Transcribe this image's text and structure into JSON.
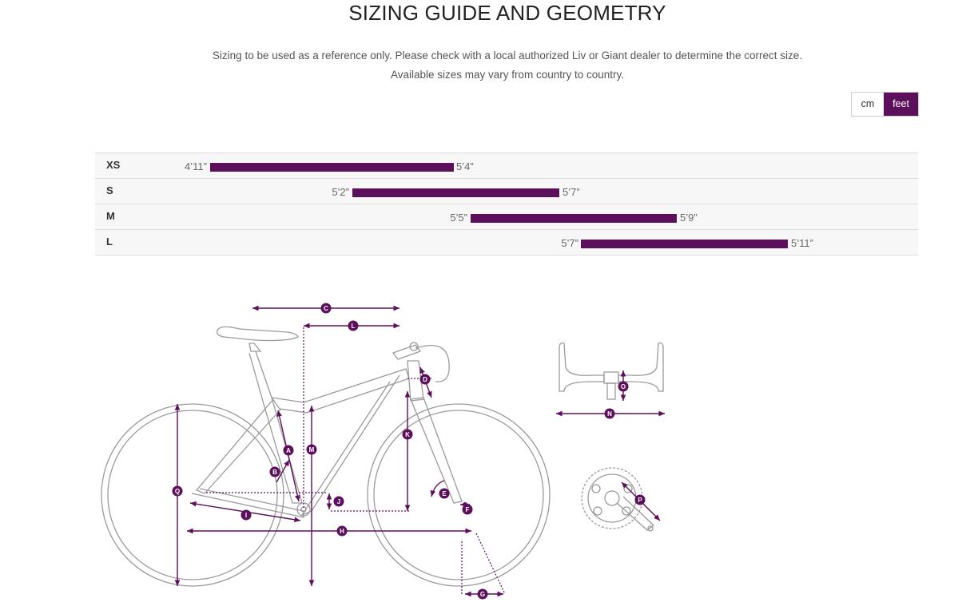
{
  "title": "SIZING GUIDE AND GEOMETRY",
  "intro": {
    "line1": "Sizing to be used as a reference only. Please check with a local authorized Liv or Giant dealer to determine the correct size.",
    "line2": "Available sizes may vary from country to country."
  },
  "unit_toggle": {
    "cm_label": "cm",
    "feet_label": "feet",
    "selected": "feet"
  },
  "sizes": [
    {
      "label": "XS",
      "min": "4’11”",
      "max": "5’4”"
    },
    {
      "label": "S",
      "min": "5’2”",
      "max": "5’7”"
    },
    {
      "label": "M",
      "min": "5’5”",
      "max": "5’9”"
    },
    {
      "label": "L",
      "min": "5’7”",
      "max": "5’11”"
    }
  ],
  "geometry_markers": [
    "A",
    "B",
    "C",
    "D",
    "E",
    "F",
    "G",
    "H",
    "I",
    "J",
    "K",
    "L",
    "M",
    "N",
    "O",
    "P",
    "Q"
  ],
  "colors": {
    "accent": "#5c0f5a",
    "row_bg": "#f7f7f7",
    "bike_line": "#9a9a9a"
  }
}
